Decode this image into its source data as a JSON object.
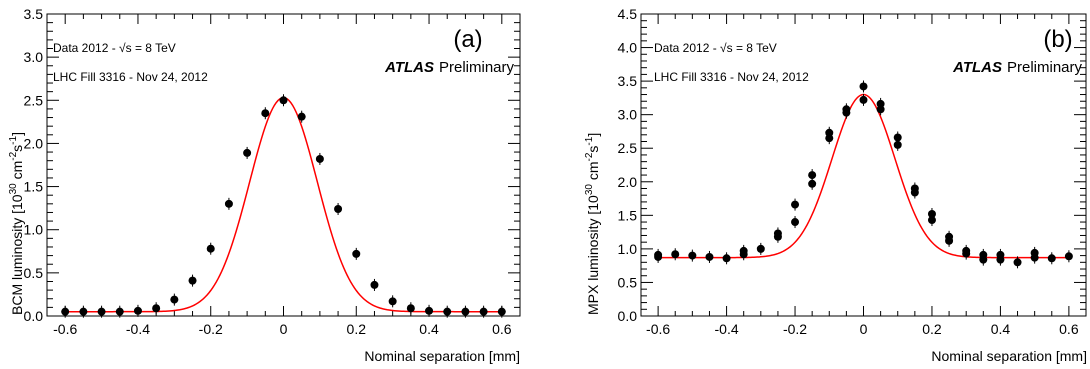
{
  "chart_data": [
    {
      "type": "scatter",
      "panel_label": "(a)",
      "xlabel": "Nominal separation [mm]",
      "ylabel_main": "BCM luminosity [10",
      "ylabel_exp1": "30",
      "ylabel_unit1": " cm",
      "ylabel_exp2": "-2",
      "ylabel_unit2": "s",
      "ylabel_exp3": "-1",
      "ylabel_close": "]",
      "xlim": [
        -0.65,
        0.65
      ],
      "ylim": [
        0,
        3.5
      ],
      "xticks": [
        -0.6,
        -0.4,
        -0.2,
        0,
        0.2,
        0.4,
        0.6
      ],
      "xtick_labels": [
        "-0.6",
        "-0.4",
        "-0.2",
        "0",
        "0.2",
        "0.4",
        "0.6"
      ],
      "yticks": [
        0,
        0.5,
        1.0,
        1.5,
        2.0,
        2.5,
        3.0,
        3.5
      ],
      "ytick_labels": [
        "0.0",
        "0.5",
        "1.0",
        "1.5",
        "2.0",
        "2.5",
        "3.0",
        "3.5"
      ],
      "annotation_line1": "Data 2012 -  √s = 8 TeV",
      "annotation_line2": "LHC Fill 3316 - Nov 24, 2012",
      "atlas_label": "ATLAS",
      "preliminary_label": "Preliminary",
      "series": [
        {
          "x": [
            -0.6,
            -0.55,
            -0.5,
            -0.45,
            -0.4,
            -0.35,
            -0.3,
            -0.25,
            -0.2,
            -0.15,
            -0.1,
            -0.05,
            0,
            0.05,
            0.1,
            0.15,
            0.2,
            0.25,
            0.3,
            0.35,
            0.4,
            0.45,
            0.5,
            0.55,
            0.6
          ],
          "y": [
            0.05,
            0.05,
            0.05,
            0.05,
            0.06,
            0.09,
            0.19,
            0.41,
            0.78,
            1.3,
            1.89,
            2.35,
            2.5,
            2.31,
            1.82,
            1.24,
            0.72,
            0.36,
            0.17,
            0.09,
            0.06,
            0.05,
            0.05,
            0.05,
            0.05
          ],
          "color": "#000000"
        }
      ],
      "fit": {
        "amplitude": 2.48,
        "sigma": 0.093,
        "constant": 0.05,
        "color": "#ff0000"
      }
    },
    {
      "type": "scatter",
      "panel_label": "(b)",
      "xlabel": "Nominal separation [mm]",
      "ylabel_main": "MPX luminosity [10",
      "ylabel_exp1": "30",
      "ylabel_unit1": " cm",
      "ylabel_exp2": "-2",
      "ylabel_unit2": "s",
      "ylabel_exp3": "-1",
      "ylabel_close": "]",
      "xlim": [
        -0.65,
        0.65
      ],
      "ylim": [
        0,
        4.5
      ],
      "xticks": [
        -0.6,
        -0.4,
        -0.2,
        0,
        0.2,
        0.4,
        0.6
      ],
      "xtick_labels": [
        "-0.6",
        "-0.4",
        "-0.2",
        "0",
        "0.2",
        "0.4",
        "0.6"
      ],
      "yticks": [
        0,
        0.5,
        1.0,
        1.5,
        2.0,
        2.5,
        3.0,
        3.5,
        4.0,
        4.5
      ],
      "ytick_labels": [
        "0.0",
        "0.5",
        "1.0",
        "1.5",
        "2.0",
        "2.5",
        "3.0",
        "3.5",
        "4.0",
        "4.5"
      ],
      "annotation_line1": "Data 2012 -  √s = 8 TeV",
      "annotation_line2": "LHC Fill 3316 - Nov 24, 2012",
      "atlas_label": "ATLAS",
      "preliminary_label": "Preliminary",
      "series": [
        {
          "x": [
            -0.6,
            -0.6,
            -0.55,
            -0.5,
            -0.45,
            -0.4,
            -0.35,
            -0.35,
            -0.3,
            -0.25,
            -0.25,
            -0.2,
            -0.2,
            -0.15,
            -0.15,
            -0.1,
            -0.1,
            -0.05,
            -0.05,
            0,
            0,
            0.05,
            0.05,
            0.1,
            0.1,
            0.15,
            0.15,
            0.2,
            0.2,
            0.25,
            0.25,
            0.3,
            0.3,
            0.35,
            0.35,
            0.4,
            0.4,
            0.45,
            0.5,
            0.5,
            0.55,
            0.6
          ],
          "y": [
            0.88,
            0.91,
            0.92,
            0.9,
            0.88,
            0.86,
            0.97,
            0.92,
            1.0,
            1.23,
            1.18,
            1.66,
            1.4,
            2.1,
            1.97,
            2.73,
            2.65,
            3.08,
            3.03,
            3.42,
            3.22,
            3.16,
            3.08,
            2.66,
            2.55,
            1.9,
            1.84,
            1.52,
            1.43,
            1.18,
            1.12,
            0.97,
            0.93,
            0.91,
            0.84,
            0.91,
            0.84,
            0.8,
            0.94,
            0.87,
            0.86,
            0.89
          ],
          "color": "#000000"
        }
      ],
      "fit": {
        "amplitude": 2.43,
        "sigma": 0.092,
        "constant": 0.87,
        "color": "#ff0000"
      }
    }
  ]
}
